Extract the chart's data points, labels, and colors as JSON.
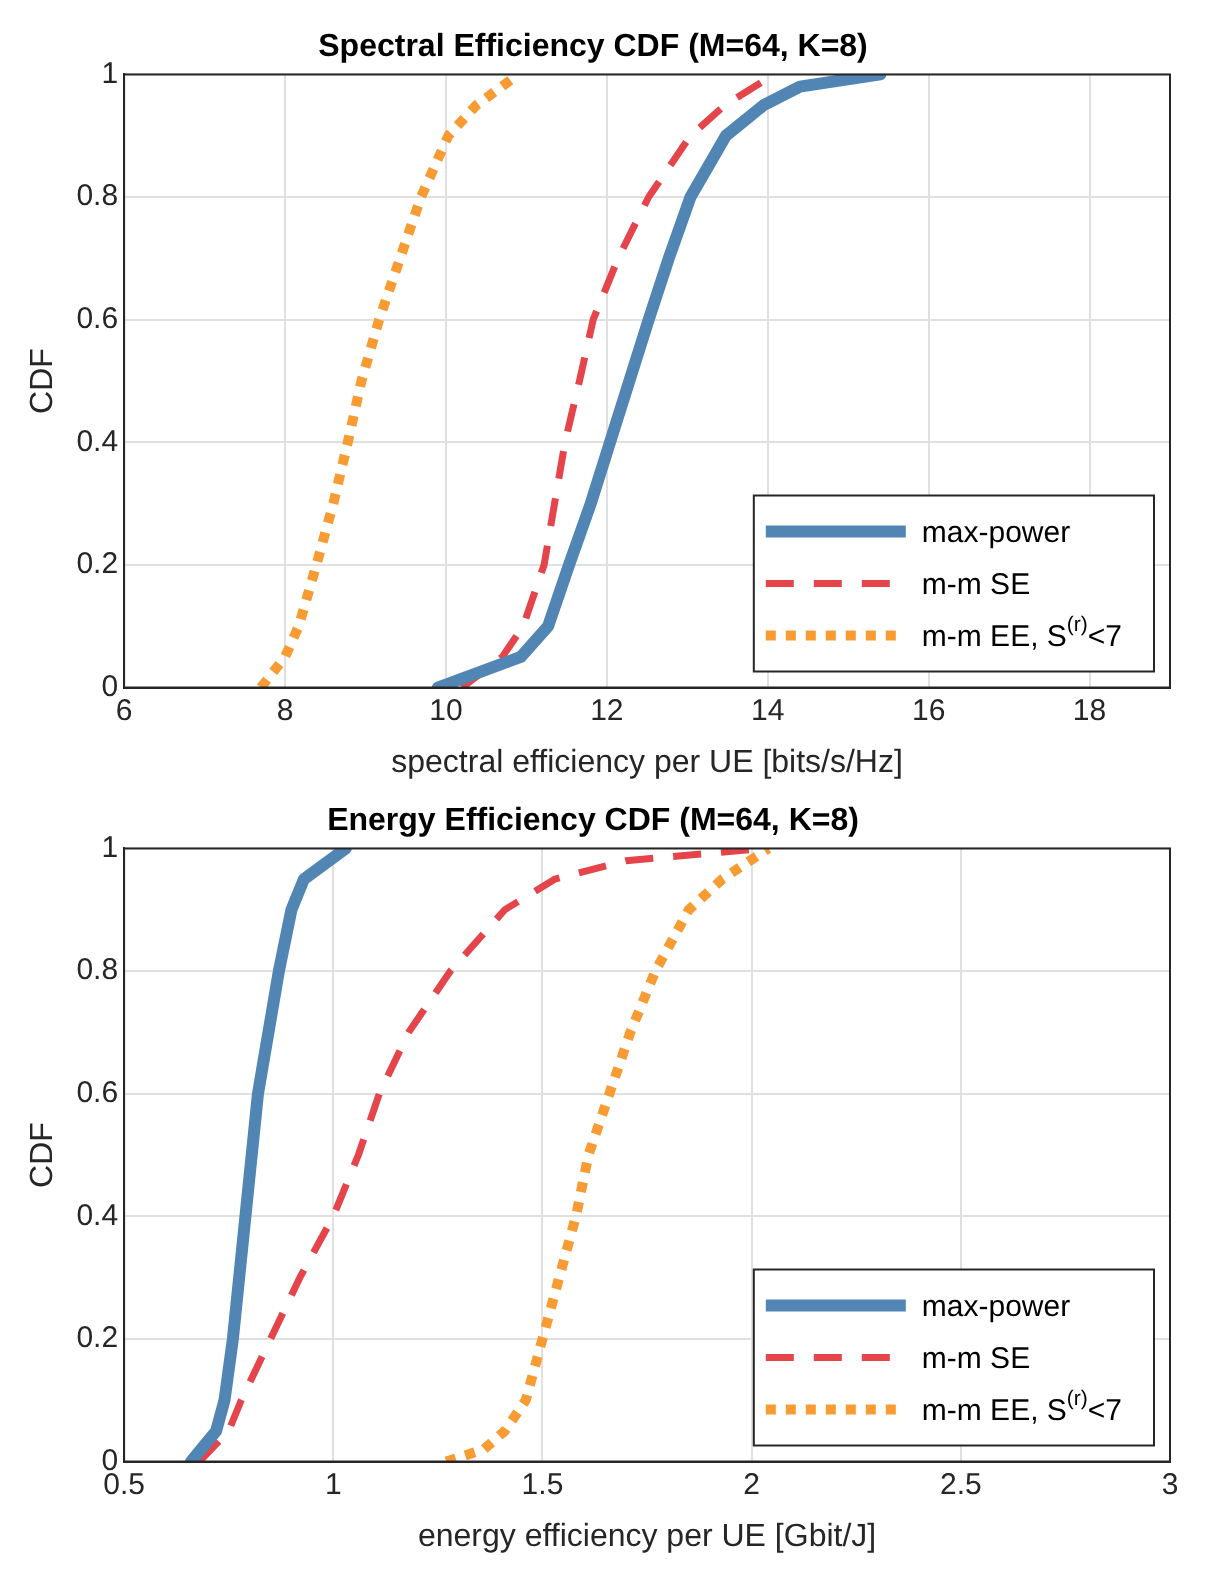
{
  "chart_data": [
    {
      "type": "line",
      "title": "Spectral Efficiency CDF (M=64, K=8)",
      "xlabel": "spectral efficiency per UE [bits/s/Hz]",
      "ylabel": "CDF",
      "xlim": [
        6,
        19
      ],
      "xticks": [
        6,
        8,
        10,
        12,
        14,
        16,
        18
      ],
      "ylim": [
        0,
        1
      ],
      "yticks": [
        0,
        0.2,
        0.4,
        0.6,
        0.8,
        1
      ],
      "grid": true,
      "legend": "bottom right",
      "marker": "none",
      "series": [
        {
          "name": "max-power",
          "color": "#5185b4",
          "line_style": "solid",
          "x": [
            9.9,
            10.93,
            11.27,
            11.53,
            11.8,
            12.04,
            12.28,
            12.52,
            12.77,
            13.04,
            13.48,
            13.95,
            14.4,
            15.4
          ],
          "values": [
            0,
            0.05,
            0.1,
            0.2,
            0.3,
            0.4,
            0.5,
            0.6,
            0.7,
            0.8,
            0.9,
            0.95,
            0.98,
            1
          ]
        },
        {
          "name": "m-m SE",
          "color": "#e5444a",
          "line_style": "dashed",
          "x": [
            10.2,
            10.7,
            10.96,
            11.22,
            11.35,
            11.48,
            11.66,
            11.83,
            12.14,
            12.52,
            13.04,
            13.47,
            14.08
          ],
          "values": [
            0,
            0.05,
            0.1,
            0.2,
            0.3,
            0.4,
            0.5,
            0.6,
            0.7,
            0.8,
            0.9,
            0.95,
            1
          ]
        },
        {
          "name": "m-m EE, S$^{(r)}$<7",
          "color": "#f89b33",
          "line_style": "dotted",
          "x": [
            7.7,
            8.0,
            8.17,
            8.39,
            8.6,
            8.78,
            8.95,
            9.17,
            9.43,
            9.69,
            10.03,
            10.38,
            10.9
          ],
          "values": [
            0,
            0.05,
            0.1,
            0.2,
            0.3,
            0.4,
            0.5,
            0.6,
            0.7,
            0.8,
            0.9,
            0.95,
            1
          ]
        }
      ]
    },
    {
      "type": "line",
      "title": "Energy Efficiency CDF (M=64, K=8)",
      "xlabel": "energy efficiency per UE [Gbit/J]",
      "ylabel": "CDF",
      "xlim": [
        0.5,
        3
      ],
      "xticks": [
        0.5,
        1,
        1.5,
        2,
        2.5,
        3
      ],
      "ylim": [
        0,
        1
      ],
      "yticks": [
        0,
        0.2,
        0.4,
        0.6,
        0.8,
        1
      ],
      "grid": true,
      "legend": "bottom right",
      "marker": "none",
      "series": [
        {
          "name": "max-power",
          "color": "#5185b4",
          "line_style": "solid",
          "x": [
            0.66,
            0.72,
            0.74,
            0.76,
            0.79,
            0.82,
            0.87,
            0.9,
            0.93,
            1.03
          ],
          "values": [
            0,
            0.05,
            0.1,
            0.2,
            0.4,
            0.6,
            0.8,
            0.9,
            0.95,
            1
          ]
        },
        {
          "name": "m-m SE",
          "color": "#e5444a",
          "line_style": "dashed",
          "x": [
            0.68,
            0.75,
            0.78,
            0.85,
            0.92,
            1.0,
            1.06,
            1.11,
            1.18,
            1.28,
            1.41,
            1.53,
            1.7,
            2.03
          ],
          "values": [
            0,
            0.05,
            0.1,
            0.2,
            0.3,
            0.4,
            0.5,
            0.6,
            0.7,
            0.8,
            0.9,
            0.95,
            0.98,
            1
          ]
        },
        {
          "name": "m-m EE, S$^{(r)}$<7",
          "color": "#f89b33",
          "line_style": "dotted",
          "x": [
            1.27,
            1.36,
            1.41,
            1.46,
            1.5,
            1.54,
            1.58,
            1.61,
            1.66,
            1.71,
            1.77,
            1.85,
            1.93,
            2.04
          ],
          "values": [
            0,
            0.02,
            0.05,
            0.1,
            0.2,
            0.3,
            0.4,
            0.5,
            0.6,
            0.7,
            0.8,
            0.9,
            0.95,
            1
          ]
        }
      ]
    }
  ]
}
